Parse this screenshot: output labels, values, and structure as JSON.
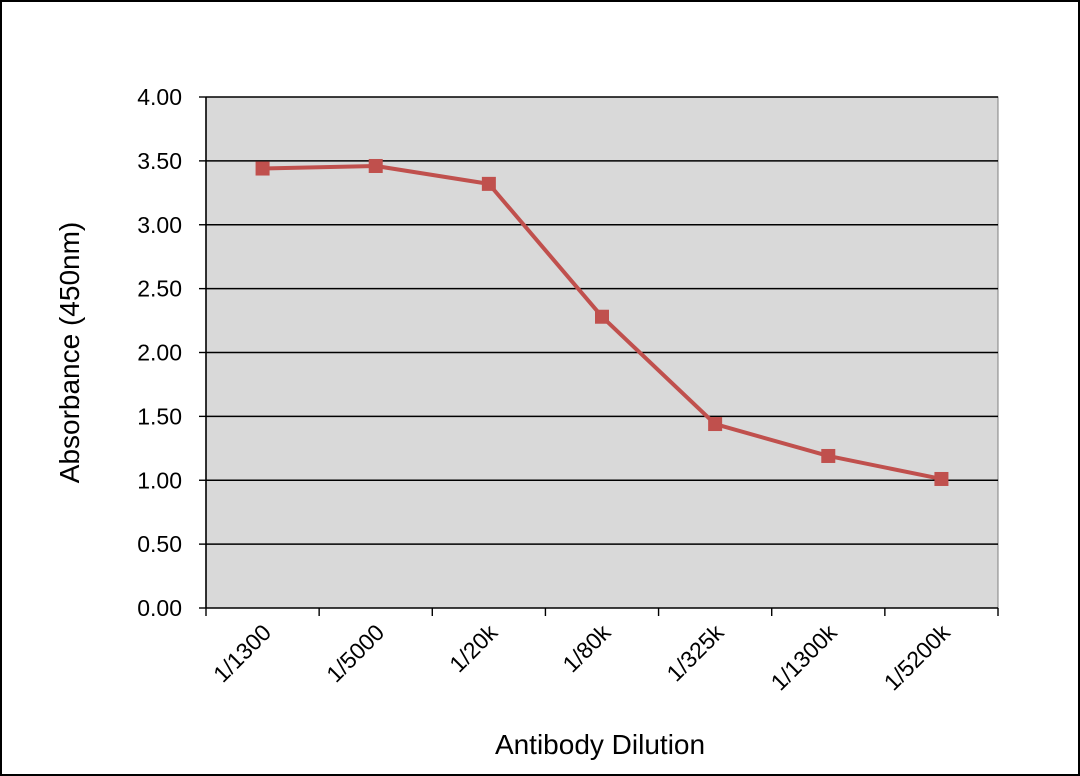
{
  "chart_data": {
    "type": "line",
    "title": "",
    "xlabel": "Antibody Dilution",
    "ylabel": "Absorbance (450nm)",
    "categories": [
      "1/1300",
      "1/5000",
      "1/20k",
      "1/80k",
      "1/325k",
      "1/1300k",
      "1/5200k"
    ],
    "series": [
      {
        "values": [
          3.44,
          3.46,
          3.32,
          2.28,
          1.44,
          1.19,
          1.01
        ],
        "color": "#c0504d"
      }
    ],
    "ylim": [
      0,
      4
    ],
    "yticks": [
      "0.00",
      "0.50",
      "1.00",
      "1.50",
      "2.00",
      "2.50",
      "3.00",
      "3.50",
      "4.00"
    ],
    "grid": true,
    "legend": "none",
    "plot_background": "#d9d9d9",
    "gridline_color": "#000000"
  }
}
